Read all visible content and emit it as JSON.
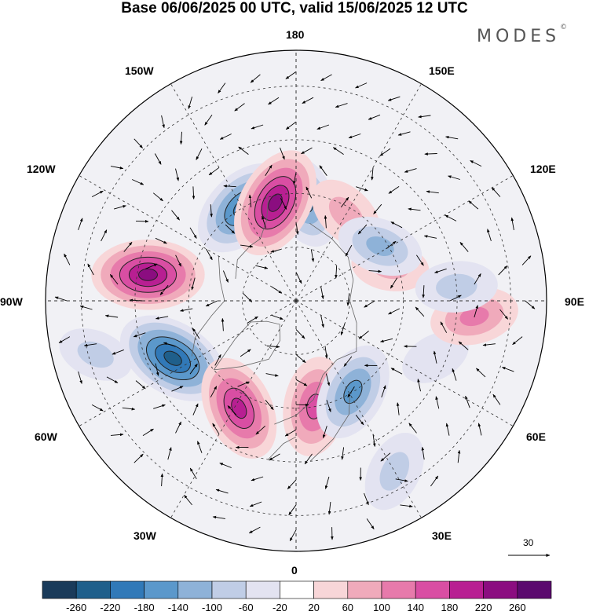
{
  "title": "Base 06/06/2025 00 UTC, valid 15/06/2025 12 UTC",
  "brand": {
    "text": "MODES",
    "mark": "©"
  },
  "longitude_labels": {
    "top": "180",
    "upper_left": "150W",
    "upper_right": "150E",
    "left_upper": "120W",
    "right_upper": "120E",
    "left": "90W",
    "right": "90E",
    "left_lower": "60W",
    "right_lower": "60E",
    "lower_left": "30W",
    "lower_right": "30E",
    "bottom": "0"
  },
  "colorbar": {
    "ticks": [
      "-260",
      "-220",
      "-180",
      "-140",
      "-100",
      "-60",
      "-20",
      "20",
      "60",
      "100",
      "140",
      "180",
      "220",
      "260"
    ],
    "colors": [
      "#1a3b5a",
      "#1f5f8b",
      "#3179b8",
      "#5b98cb",
      "#8eb2d8",
      "#c0cde6",
      "#e3e3f1",
      "#ffffff",
      "#f8d6d8",
      "#f0aabb",
      "#e77aab",
      "#d94ea3",
      "#b81f92",
      "#8b0d80",
      "#5b0a6e"
    ]
  },
  "reference_vector": {
    "value": "30"
  },
  "anomalies": [
    {
      "lon": -150,
      "lat": 60,
      "value": -200
    },
    {
      "lon": 175,
      "lat": 62,
      "value": -150
    },
    {
      "lon": -168,
      "lat": 62,
      "value": 230
    },
    {
      "lon": -100,
      "lat": 48,
      "value": 230
    },
    {
      "lon": -65,
      "lat": 52,
      "value": -240
    },
    {
      "lon": -28,
      "lat": 56,
      "value": 200
    },
    {
      "lon": 10,
      "lat": 60,
      "value": 170
    },
    {
      "lon": 32,
      "lat": 60,
      "value": -170
    },
    {
      "lon": 68,
      "lat": 48,
      "value": -40
    },
    {
      "lon": 85,
      "lat": 40,
      "value": 120
    },
    {
      "lon": 110,
      "lat": 62,
      "value": 70
    },
    {
      "lon": 150,
      "lat": 62,
      "value": 90
    },
    {
      "lon": 123,
      "lat": 62,
      "value": -110
    },
    {
      "lon": 95,
      "lat": 45,
      "value": -90
    },
    {
      "lon": 30,
      "lat": 35,
      "value": -90
    },
    {
      "lon": -75,
      "lat": 32,
      "value": -60
    }
  ]
}
